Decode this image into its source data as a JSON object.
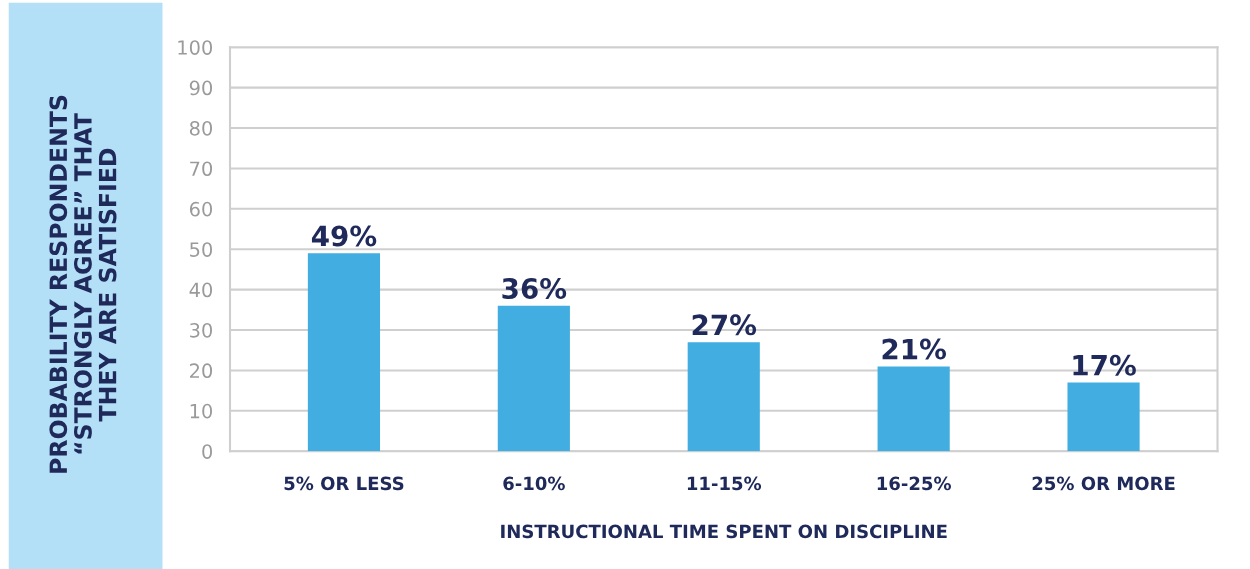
{
  "chart_data": {
    "type": "bar",
    "categories": [
      "5% OR LESS",
      "6-10%",
      "11-15%",
      "16-25%",
      "25% OR MORE"
    ],
    "values": [
      49,
      36,
      27,
      21,
      17
    ],
    "value_labels": [
      "49%",
      "36%",
      "27%",
      "21%",
      "17%"
    ],
    "color": "#41ade1",
    "xlabel": "INSTRUCTIONAL TIME SPENT ON DISCIPLINE",
    "ylabel": "PROBABILITY RESPONDENTS\n“STRONGLY AGREE” THAT\nTHEY ARE SATISFIED",
    "ylim": [
      0,
      100
    ],
    "yticks": [
      0,
      10,
      20,
      30,
      40,
      50,
      60,
      70,
      80,
      90,
      100
    ],
    "grid": "y"
  }
}
